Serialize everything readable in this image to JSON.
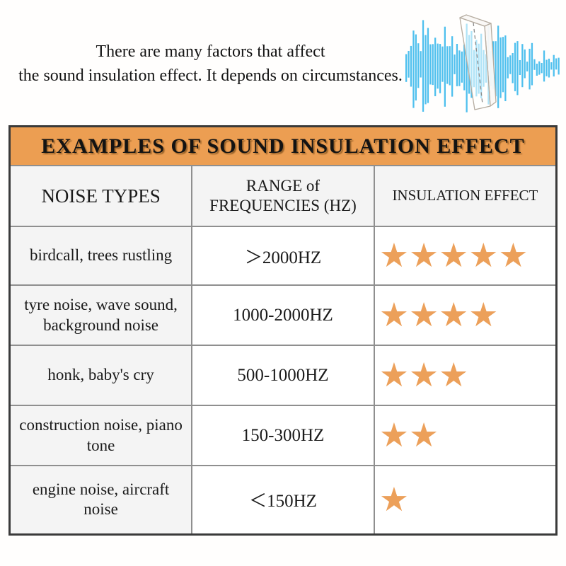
{
  "intro": {
    "line1": "There are many factors that affect",
    "line2": "the sound insulation effect. It depends on circumstances."
  },
  "graphic": {
    "label": "sound-wave-attenuated-by-glass-panel",
    "wave_color": "#4FC0EE"
  },
  "table": {
    "title": "EXAMPLES OF SOUND INSULATION EFFECT",
    "colors": {
      "title_bg": "#EC9E52",
      "star": "#ECA05A",
      "shaded_cell": "#F4F4F4",
      "grid_line": "#8F8F8F",
      "outer_border": "#3A3A3A"
    },
    "columns": [
      {
        "lines": [
          "NOISE TYPES"
        ]
      },
      {
        "lines": [
          "RANGE of",
          "FREQUENCIES (HZ)"
        ]
      },
      {
        "lines": [
          "INSULATION EFFECT"
        ]
      }
    ],
    "rows": [
      {
        "noise": "birdcall, trees rustling",
        "range": "＞2000HZ",
        "stars": 5,
        "stars_text": "★★★★★"
      },
      {
        "noise": "tyre noise, wave sound, background noise",
        "range": "1000-2000HZ",
        "stars": 4,
        "stars_text": "★★★★"
      },
      {
        "noise": "honk, baby's cry",
        "range": "500-1000HZ",
        "stars": 3,
        "stars_text": "★★★"
      },
      {
        "noise": "construction noise, piano tone",
        "range": "150-300HZ",
        "stars": 2,
        "stars_text": "★★"
      },
      {
        "noise": "engine noise, aircraft noise",
        "range": "＜150HZ",
        "stars": 1,
        "stars_text": "★"
      }
    ]
  },
  "chart_data": {
    "type": "table",
    "title": "EXAMPLES OF SOUND INSULATION EFFECT",
    "columns": [
      "NOISE TYPES",
      "RANGE of FREQUENCIES (HZ)",
      "INSULATION EFFECT"
    ],
    "rows": [
      [
        "birdcall, trees rustling",
        "＞2000HZ",
        5
      ],
      [
        "tyre noise, wave sound, background noise",
        "1000-2000HZ",
        4
      ],
      [
        "honk, baby's cry",
        "500-1000HZ",
        3
      ],
      [
        "construction noise, piano tone",
        "150-300HZ",
        2
      ],
      [
        "engine noise, aircraft noise",
        "＜150HZ",
        1
      ]
    ],
    "notes": "INSULATION EFFECT rendered as 1-5 orange star rating"
  }
}
